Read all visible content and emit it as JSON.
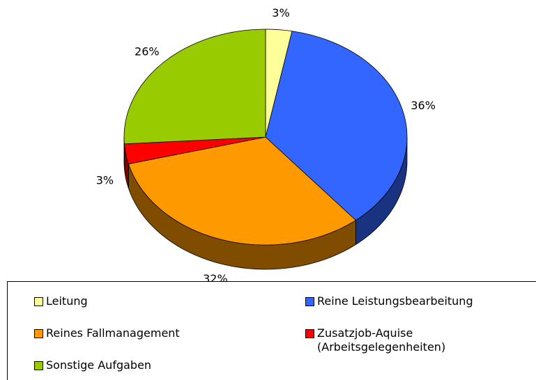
{
  "chart_data": {
    "type": "pie3d",
    "series": [
      {
        "name": "Leitung",
        "color": "#ffff99",
        "values": [
          3
        ],
        "value_labels": [
          "3%"
        ]
      },
      {
        "name": "Reine Leistungsbearbeitung",
        "color": "#3366ff",
        "values": [
          36
        ],
        "value_labels": [
          "36%"
        ]
      },
      {
        "name": "Reines Fallmanagement",
        "color": "#ff9900",
        "values": [
          32
        ],
        "value_labels": [
          "32%"
        ]
      },
      {
        "name": "Zusatzjob-Aquise\n(Arbeitsgelegenheiten)",
        "color": "#ff0000",
        "values": [
          3
        ],
        "value_labels": [
          "3%"
        ]
      },
      {
        "name": "Sonstige Aufgaben",
        "color": "#99cc00",
        "values": [
          26
        ],
        "value_labels": [
          "26%"
        ]
      }
    ]
  }
}
